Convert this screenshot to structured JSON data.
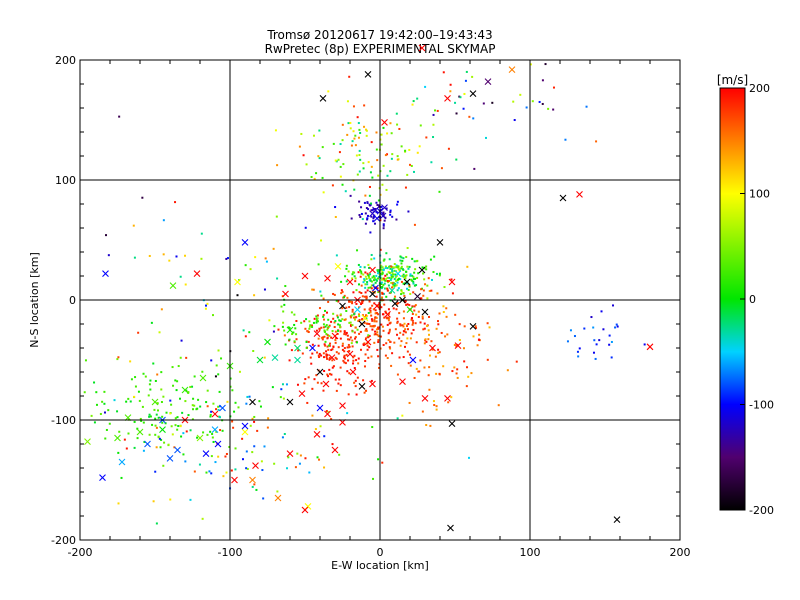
{
  "chart_data": {
    "type": "scatter",
    "title": "Tromsø 20120617 19:42:00–19:43:43",
    "subtitle": "RwPretec (8p) EXPERIMENTAL SKYMAP",
    "xlabel": "E-W location [km]",
    "ylabel": "N-S location [km]",
    "xlim": [
      -200,
      200
    ],
    "ylim": [
      -200,
      200
    ],
    "xticks": [
      -200,
      -100,
      0,
      100,
      200
    ],
    "yticks": [
      -200,
      -100,
      0,
      100,
      200
    ],
    "grid": true,
    "colorbar": {
      "label": "[m/s]",
      "range": [
        -200,
        200
      ],
      "ticks": [
        200,
        100,
        0,
        -100,
        -200
      ],
      "colormap": "black-purple-blue-cyan-green-yellow-red"
    },
    "markers": {
      "dot": "·",
      "cross": "x"
    },
    "points": [
      [
        -38,
        168,
        -200,
        "x"
      ],
      [
        -8,
        188,
        -200,
        "x"
      ],
      [
        45,
        168,
        200,
        "x"
      ],
      [
        28,
        210,
        200,
        "x"
      ],
      [
        62,
        172,
        -200,
        "x"
      ],
      [
        72,
        182,
        -150,
        "x"
      ],
      [
        88,
        192,
        150,
        "x"
      ],
      [
        133,
        88,
        200,
        "x"
      ],
      [
        122,
        85,
        -200,
        "x"
      ],
      [
        40,
        48,
        -200,
        "x"
      ],
      [
        -90,
        48,
        -100,
        "x"
      ],
      [
        -183,
        22,
        -100,
        "x"
      ],
      [
        3,
        148,
        200,
        "x"
      ],
      [
        -63,
        5,
        200,
        "x"
      ],
      [
        -122,
        22,
        200,
        "x"
      ],
      [
        -138,
        12,
        30,
        "x"
      ],
      [
        -95,
        15,
        100,
        "x"
      ],
      [
        -5,
        72,
        -120,
        "x"
      ],
      [
        -3,
        75,
        -120,
        "x"
      ],
      [
        2,
        70,
        -120,
        "x"
      ],
      [
        -2,
        68,
        -110,
        "x"
      ],
      [
        0,
        74,
        -110,
        "x"
      ],
      [
        3,
        77,
        -120,
        "x"
      ],
      [
        -5,
        25,
        200,
        "x"
      ],
      [
        -20,
        15,
        200,
        "x"
      ],
      [
        -35,
        18,
        200,
        "x"
      ],
      [
        -50,
        20,
        200,
        "x"
      ],
      [
        -28,
        28,
        100,
        "x"
      ],
      [
        12,
        22,
        -50,
        "x"
      ],
      [
        28,
        25,
        -200,
        "x"
      ],
      [
        48,
        15,
        200,
        "x"
      ],
      [
        25,
        3,
        -180,
        "x"
      ],
      [
        -5,
        5,
        -200,
        "x"
      ],
      [
        -15,
        0,
        200,
        "x"
      ],
      [
        10,
        -3,
        -200,
        "x"
      ],
      [
        20,
        -8,
        10,
        "x"
      ],
      [
        -10,
        -15,
        100,
        "x"
      ],
      [
        -30,
        -30,
        200,
        "x"
      ],
      [
        -42,
        -28,
        200,
        "x"
      ],
      [
        -60,
        -25,
        10,
        "x"
      ],
      [
        -75,
        -35,
        0,
        "x"
      ],
      [
        -55,
        -50,
        -30,
        "x"
      ],
      [
        -32,
        -48,
        200,
        "x"
      ],
      [
        -18,
        -60,
        200,
        "x"
      ],
      [
        -5,
        -70,
        200,
        "x"
      ],
      [
        -12,
        -72,
        -200,
        "x"
      ],
      [
        15,
        -68,
        200,
        "x"
      ],
      [
        30,
        -82,
        200,
        "x"
      ],
      [
        45,
        -82,
        200,
        "x"
      ],
      [
        -40,
        -90,
        -100,
        "x"
      ],
      [
        -35,
        -95,
        200,
        "x"
      ],
      [
        -25,
        -88,
        200,
        "x"
      ],
      [
        -60,
        -85,
        -200,
        "x"
      ],
      [
        -85,
        -85,
        -200,
        "x"
      ],
      [
        -105,
        -90,
        -80,
        "x"
      ],
      [
        -110,
        -95,
        200,
        "x"
      ],
      [
        -90,
        -110,
        100,
        "x"
      ],
      [
        -130,
        -100,
        200,
        "x"
      ],
      [
        -145,
        -108,
        0,
        "x"
      ],
      [
        -160,
        -110,
        30,
        "x"
      ],
      [
        -175,
        -115,
        30,
        "x"
      ],
      [
        -195,
        -118,
        50,
        "x"
      ],
      [
        -168,
        -98,
        30,
        "x"
      ],
      [
        -150,
        -85,
        30,
        "x"
      ],
      [
        -130,
        -75,
        20,
        "x"
      ],
      [
        -118,
        -65,
        30,
        "x"
      ],
      [
        -100,
        -55,
        20,
        "x"
      ],
      [
        -80,
        -50,
        -10,
        "x"
      ],
      [
        -70,
        -48,
        -30,
        "x"
      ],
      [
        -55,
        -40,
        -20,
        "x"
      ],
      [
        -155,
        -120,
        -80,
        "x"
      ],
      [
        -135,
        -125,
        -80,
        "x"
      ],
      [
        -172,
        -135,
        -60,
        "x"
      ],
      [
        -185,
        -148,
        -100,
        "x"
      ],
      [
        -83,
        -138,
        200,
        "x"
      ],
      [
        -60,
        -128,
        200,
        "x"
      ],
      [
        -42,
        -112,
        200,
        "x"
      ],
      [
        -30,
        -125,
        200,
        "x"
      ],
      [
        -85,
        -150,
        150,
        "x"
      ],
      [
        -68,
        -165,
        150,
        "x"
      ],
      [
        -48,
        -172,
        100,
        "x"
      ],
      [
        -50,
        -175,
        200,
        "x"
      ],
      [
        -97,
        -150,
        200,
        "x"
      ],
      [
        48,
        -103,
        -200,
        "x"
      ],
      [
        62,
        -22,
        -200,
        "x"
      ],
      [
        47,
        -190,
        -200,
        "x"
      ],
      [
        158,
        -183,
        -200,
        "x"
      ],
      [
        180,
        -39,
        200,
        "x"
      ],
      [
        -110,
        -108,
        -60,
        "x"
      ],
      [
        -120,
        -115,
        50,
        "x"
      ],
      [
        -140,
        -132,
        -80,
        "x"
      ],
      [
        -145,
        -100,
        -80,
        "x"
      ],
      [
        -2,
        -5,
        200,
        "x"
      ],
      [
        5,
        -12,
        200,
        "x"
      ],
      [
        -20,
        -45,
        200,
        "x"
      ],
      [
        -8,
        -35,
        200,
        "x"
      ],
      [
        22,
        -50,
        -100,
        "x"
      ],
      [
        35,
        -40,
        200,
        "x"
      ],
      [
        52,
        -38,
        200,
        "x"
      ],
      [
        -36,
        -70,
        200,
        "x"
      ],
      [
        -52,
        -78,
        200,
        "x"
      ],
      [
        -25,
        -102,
        200,
        "x"
      ],
      [
        -15,
        -8,
        -50,
        "x"
      ],
      [
        8,
        8,
        -30,
        "x"
      ],
      [
        15,
        0,
        -200,
        "x"
      ],
      [
        -12,
        -20,
        -200,
        "x"
      ],
      [
        -25,
        -5,
        -200,
        "x"
      ],
      [
        18,
        15,
        -200,
        "x"
      ],
      [
        30,
        -10,
        -200,
        "x"
      ],
      [
        -3,
        10,
        -100,
        "x"
      ],
      [
        -40,
        -60,
        -200,
        "x"
      ],
      [
        -45,
        -40,
        -100,
        "x"
      ],
      [
        -90,
        -105,
        -100,
        "x"
      ],
      [
        -108,
        -120,
        -100,
        "x"
      ],
      [
        -116,
        -128,
        -100,
        "x"
      ]
    ],
    "dot_clusters": [
      {
        "cx": 5,
        "cy": 20,
        "rx": 22,
        "ry": 14,
        "n": 260,
        "v": [
          -50,
          80
        ]
      },
      {
        "cx": -5,
        "cy": -15,
        "rx": 35,
        "ry": 30,
        "n": 320,
        "v": [
          150,
          200
        ]
      },
      {
        "cx": -30,
        "cy": -45,
        "rx": 28,
        "ry": 28,
        "n": 150,
        "v": [
          170,
          200
        ]
      },
      {
        "cx": -40,
        "cy": -20,
        "rx": 25,
        "ry": 15,
        "n": 80,
        "v": [
          -10,
          60
        ]
      },
      {
        "cx": -2,
        "cy": 72,
        "rx": 14,
        "ry": 10,
        "n": 60,
        "v": [
          -140,
          -100
        ]
      },
      {
        "cx": -5,
        "cy": 120,
        "rx": 45,
        "ry": 40,
        "n": 130,
        "v": [
          -40,
          200
        ]
      },
      {
        "cx": -150,
        "cy": -90,
        "rx": 45,
        "ry": 30,
        "n": 140,
        "v": [
          -10,
          50
        ]
      },
      {
        "cx": -95,
        "cy": -125,
        "rx": 90,
        "ry": 40,
        "n": 120,
        "v": [
          -100,
          200
        ]
      },
      {
        "cx": 145,
        "cy": -30,
        "rx": 30,
        "ry": 25,
        "n": 25,
        "v": [
          -120,
          -60
        ]
      },
      {
        "cx": 75,
        "cy": 165,
        "rx": 60,
        "ry": 28,
        "n": 40,
        "v": [
          -200,
          200
        ]
      },
      {
        "cx": 40,
        "cy": -40,
        "rx": 30,
        "ry": 45,
        "n": 90,
        "v": [
          120,
          200
        ]
      },
      {
        "cx": -120,
        "cy": 0,
        "rx": 80,
        "ry": 90,
        "n": 70,
        "v": [
          -200,
          200
        ]
      }
    ]
  }
}
